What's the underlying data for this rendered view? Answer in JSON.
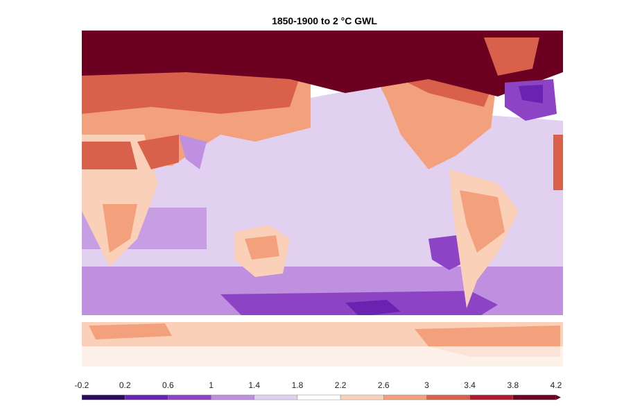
{
  "title": "1850-1900 to 2 °C GWL",
  "colorbar": {
    "ticks": [
      "-0.2",
      "0.2",
      "0.6",
      "1",
      "1.4",
      "1.8",
      "2.2",
      "2.6",
      "3",
      "3.4",
      "3.8",
      "4.2"
    ],
    "colors": [
      "#2d0a5e",
      "#6a22b0",
      "#8c44c4",
      "#c090e0",
      "#e2d0f0",
      "#ffffff",
      "#fbd0b8",
      "#f3a07c",
      "#d9604a",
      "#b01a2e",
      "#6b0020"
    ],
    "extend": "max"
  }
}
